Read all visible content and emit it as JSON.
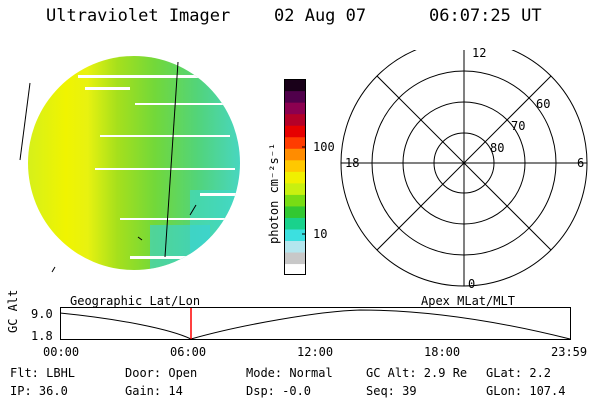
{
  "header": {
    "instrument": "Ultraviolet Imager",
    "date": "02 Aug 07",
    "time": "06:07:25 UT"
  },
  "colorbar": {
    "label": "photon cm⁻²s⁻¹",
    "tick_labels": [
      "100",
      "10"
    ],
    "colors": [
      "#ffffff",
      "#c8c8c8",
      "#b4e6ee",
      "#3ce0e0",
      "#19d28c",
      "#32c832",
      "#78dc14",
      "#c8f010",
      "#f0f000",
      "#ffc800",
      "#ff8c00",
      "#ff3c00",
      "#e60000",
      "#b40028",
      "#8c0050",
      "#50004b",
      "#190019"
    ]
  },
  "polar_plot": {
    "mlt_labels": {
      "top": "12",
      "left": "18",
      "right": "6",
      "bottom": "0"
    },
    "lat_labels": [
      "60",
      "70",
      "80"
    ]
  },
  "orbit_panel": {
    "left_title": "Geographic Lat/Lon",
    "right_title": "Apex MLat/MLT",
    "axis_name": "GC Alt",
    "y_ticks": [
      "9.0",
      "1.8"
    ],
    "x_ticks": [
      "00:00",
      "06:00",
      "12:00",
      "18:00",
      "23:59"
    ],
    "marker_color": "#ff0000"
  },
  "info": {
    "flt": "Flt: LBHL",
    "door": "Door: Open",
    "mode": "Mode: Normal",
    "gc_alt": "GC Alt: 2.9 Re",
    "glat": "GLat:  2.2",
    "ip": "IP: 36.0",
    "gain": "Gain: 14",
    "dsp": "Dsp:  -0.0",
    "seq": "Seq: 39",
    "glon": "GLon: 107.4"
  }
}
